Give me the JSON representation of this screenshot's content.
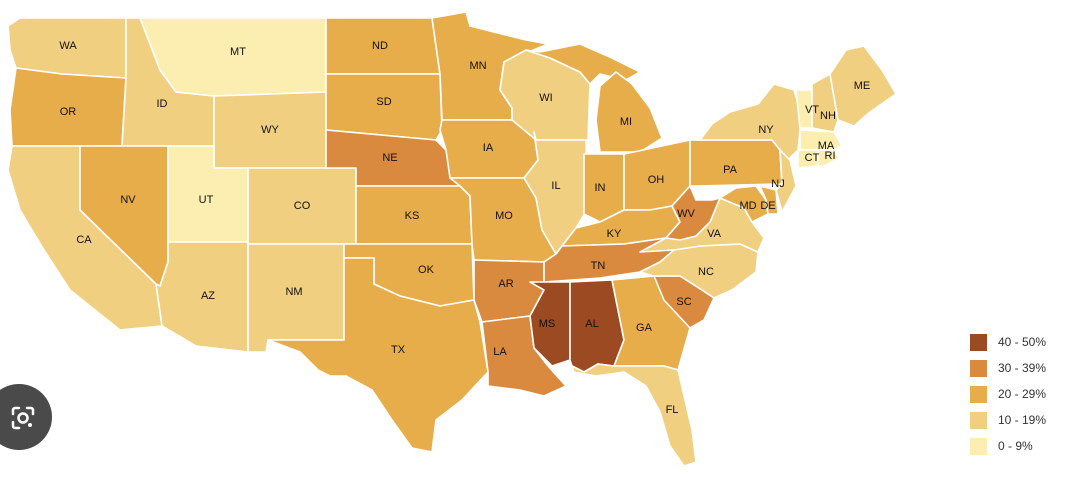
{
  "map": {
    "colors": {
      "c40": "#9c4a22",
      "c30": "#d98a3f",
      "c20": "#e6ad4a",
      "c10": "#f1cf80",
      "c0": "#fbeeb0"
    },
    "states": [
      {
        "abbr": "WA",
        "bin": "c10"
      },
      {
        "abbr": "OR",
        "bin": "c20"
      },
      {
        "abbr": "CA",
        "bin": "c10"
      },
      {
        "abbr": "ID",
        "bin": "c10"
      },
      {
        "abbr": "NV",
        "bin": "c20"
      },
      {
        "abbr": "MT",
        "bin": "c0"
      },
      {
        "abbr": "WY",
        "bin": "c10"
      },
      {
        "abbr": "UT",
        "bin": "c0"
      },
      {
        "abbr": "AZ",
        "bin": "c10"
      },
      {
        "abbr": "CO",
        "bin": "c10"
      },
      {
        "abbr": "NM",
        "bin": "c10"
      },
      {
        "abbr": "ND",
        "bin": "c20"
      },
      {
        "abbr": "SD",
        "bin": "c20"
      },
      {
        "abbr": "NE",
        "bin": "c30"
      },
      {
        "abbr": "KS",
        "bin": "c20"
      },
      {
        "abbr": "OK",
        "bin": "c20"
      },
      {
        "abbr": "TX",
        "bin": "c20"
      },
      {
        "abbr": "MN",
        "bin": "c20"
      },
      {
        "abbr": "IA",
        "bin": "c20"
      },
      {
        "abbr": "MO",
        "bin": "c20"
      },
      {
        "abbr": "AR",
        "bin": "c30"
      },
      {
        "abbr": "LA",
        "bin": "c30"
      },
      {
        "abbr": "WI",
        "bin": "c10"
      },
      {
        "abbr": "IL",
        "bin": "c10"
      },
      {
        "abbr": "MI",
        "bin": "c20"
      },
      {
        "abbr": "IN",
        "bin": "c20"
      },
      {
        "abbr": "OH",
        "bin": "c20"
      },
      {
        "abbr": "KY",
        "bin": "c20"
      },
      {
        "abbr": "TN",
        "bin": "c30"
      },
      {
        "abbr": "MS",
        "bin": "c40"
      },
      {
        "abbr": "AL",
        "bin": "c40"
      },
      {
        "abbr": "GA",
        "bin": "c20"
      },
      {
        "abbr": "FL",
        "bin": "c10"
      },
      {
        "abbr": "SC",
        "bin": "c30"
      },
      {
        "abbr": "NC",
        "bin": "c10"
      },
      {
        "abbr": "VA",
        "bin": "c10"
      },
      {
        "abbr": "WV",
        "bin": "c30"
      },
      {
        "abbr": "PA",
        "bin": "c20"
      },
      {
        "abbr": "NY",
        "bin": "c10"
      },
      {
        "abbr": "MD",
        "bin": "c20"
      },
      {
        "abbr": "DE",
        "bin": "c20"
      },
      {
        "abbr": "NJ",
        "bin": "c10"
      },
      {
        "abbr": "VT",
        "bin": "c0"
      },
      {
        "abbr": "NH",
        "bin": "c10"
      },
      {
        "abbr": "ME",
        "bin": "c10"
      },
      {
        "abbr": "MA",
        "bin": "c0"
      },
      {
        "abbr": "CT",
        "bin": "c0"
      },
      {
        "abbr": "RI",
        "bin": "c0"
      }
    ]
  },
  "legend": [
    {
      "label": "40 - 50%",
      "bin": "c40"
    },
    {
      "label": "30 - 39%",
      "bin": "c30"
    },
    {
      "label": "20 - 29%",
      "bin": "c20"
    },
    {
      "label": "10 - 19%",
      "bin": "c10"
    },
    {
      "label": "0 - 9%",
      "bin": "c0"
    }
  ],
  "lens_button": {
    "icon": "lens-camera-icon"
  }
}
